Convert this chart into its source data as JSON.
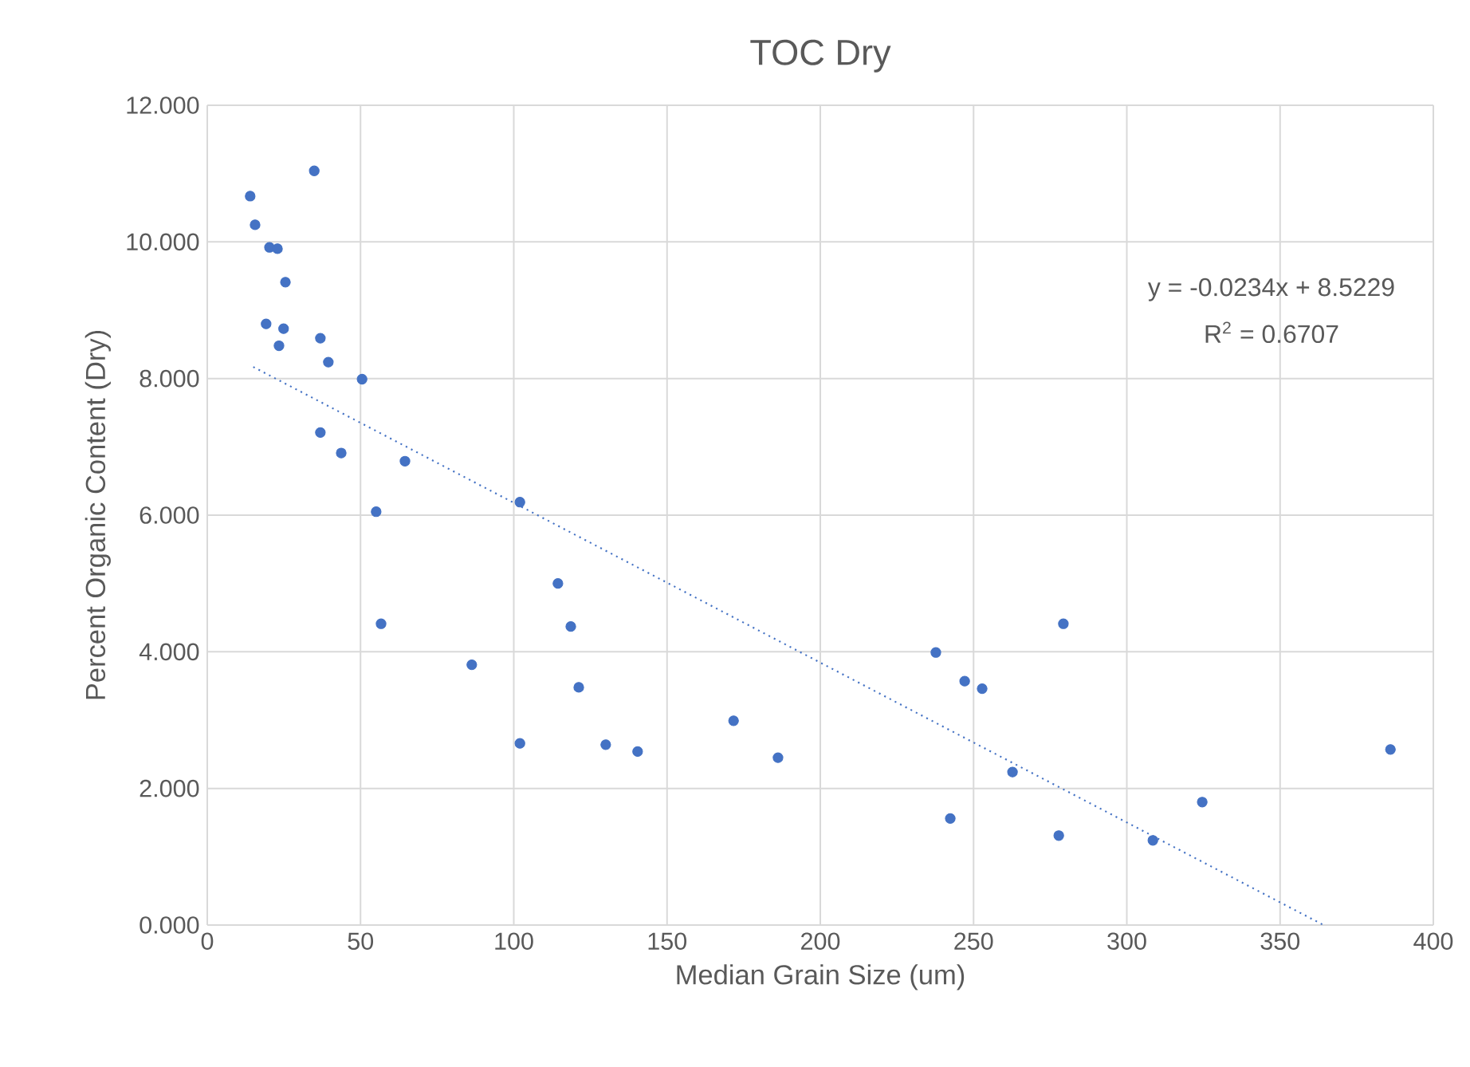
{
  "chart_data": {
    "type": "scatter",
    "title": "TOC Dry",
    "xlabel": "Median Grain Size (um)",
    "ylabel": "Percent Organic Content (Dry)",
    "xlim": [
      0,
      400
    ],
    "xticks": [
      0,
      50,
      100,
      150,
      200,
      250,
      300,
      350,
      400
    ],
    "ylim": [
      0,
      12
    ],
    "yticks": [
      {
        "value": 0,
        "label": "0.000"
      },
      {
        "value": 2,
        "label": "2.000"
      },
      {
        "value": 4,
        "label": "4.000"
      },
      {
        "value": 6,
        "label": "6.000"
      },
      {
        "value": 8,
        "label": "8.000"
      },
      {
        "value": 10,
        "label": "10.000"
      },
      {
        "value": 12,
        "label": "12.000"
      }
    ],
    "grid": true,
    "marker": "circle",
    "annotations": [
      "y = -0.0234x + 8.5229",
      "R$^{2}$ = 0.6707"
    ],
    "series": [
      {
        "color": "#4472c4",
        "x": [
          14.0,
          15.6,
          20.3,
          22.9,
          25.5,
          19.2,
          24.9,
          23.4,
          34.9,
          36.9,
          39.5,
          50.5,
          36.9,
          43.7,
          64.5,
          55.1,
          56.7,
          102.0,
          86.3,
          102.0,
          114.4,
          118.6,
          121.2,
          130.0,
          140.4,
          171.7,
          186.2,
          237.7,
          247.1,
          252.8,
          242.4,
          262.7,
          279.3,
          277.8,
          308.5,
          324.6,
          386.0
        ],
        "values": [
          10.67,
          10.25,
          9.92,
          9.9,
          9.41,
          8.8,
          8.73,
          8.48,
          11.04,
          8.59,
          8.24,
          7.99,
          7.21,
          6.91,
          6.79,
          6.05,
          4.41,
          6.19,
          3.81,
          2.66,
          5.0,
          4.37,
          3.48,
          2.64,
          2.54,
          2.99,
          2.45,
          3.99,
          3.57,
          3.46,
          1.56,
          2.24,
          4.41,
          1.31,
          1.24,
          1.8,
          2.57
        ]
      },
      {
        "type": "line",
        "color": "#4472c4",
        "line_style": "dotted",
        "marker": "none",
        "x": [
          15,
          364.2
        ],
        "values": [
          8.17,
          0.0
        ]
      }
    ]
  }
}
